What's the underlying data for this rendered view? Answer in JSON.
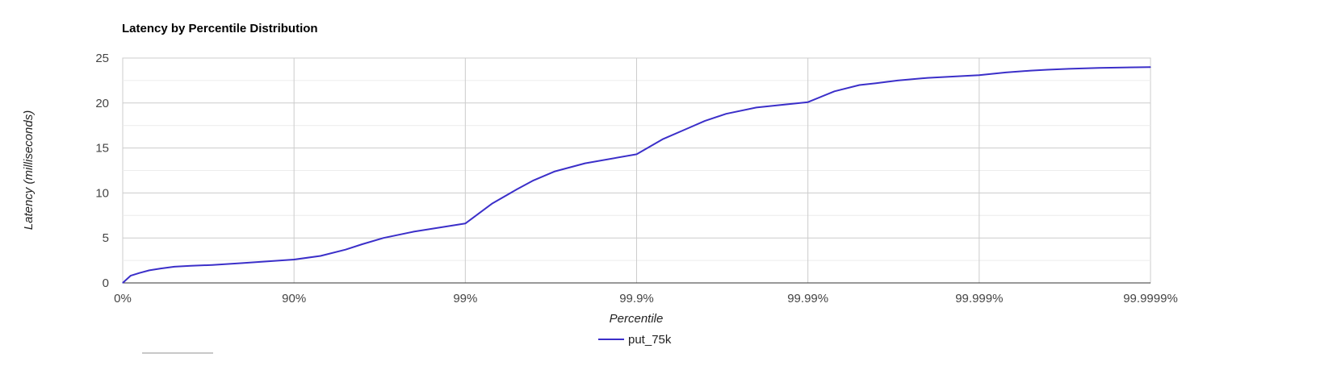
{
  "chart_data": {
    "type": "line",
    "title": "Latency by Percentile Distribution",
    "xlabel": "Percentile",
    "ylabel": "Latency (milliseconds)",
    "x_scale": "log-inverse-percentile",
    "x_ticks": [
      "0%",
      "90%",
      "99%",
      "99.9%",
      "99.99%",
      "99.999%",
      "99.9999%"
    ],
    "y_ticks": [
      "0",
      "5",
      "10",
      "15",
      "20",
      "25"
    ],
    "ylim": [
      0,
      25
    ],
    "grid": true,
    "legend_position": "bottom",
    "series": [
      {
        "name": "put_75k",
        "color": "#3b2fc9",
        "x": [
          "0%",
          "10%",
          "20%",
          "30%",
          "40%",
          "50%",
          "60%",
          "70%",
          "80%",
          "90%",
          "93%",
          "95%",
          "96%",
          "97%",
          "98%",
          "99%",
          "99.3%",
          "99.5%",
          "99.6%",
          "99.7%",
          "99.8%",
          "99.9%",
          "99.93%",
          "99.95%",
          "99.96%",
          "99.97%",
          "99.98%",
          "99.99%",
          "99.993%",
          "99.995%",
          "99.996%",
          "99.997%",
          "99.998%",
          "99.999%",
          "99.9993%",
          "99.9995%",
          "99.9996%",
          "99.9997%",
          "99.9998%",
          "99.9999%"
        ],
        "values": [
          0,
          0.8,
          1.1,
          1.4,
          1.6,
          1.8,
          1.9,
          2.0,
          2.2,
          2.6,
          3.0,
          3.7,
          4.3,
          5.0,
          5.7,
          6.6,
          8.8,
          10.4,
          11.4,
          12.4,
          13.3,
          14.3,
          16.0,
          17.2,
          18.0,
          18.8,
          19.5,
          20.1,
          21.3,
          22.0,
          22.2,
          22.5,
          22.8,
          23.1,
          23.4,
          23.6,
          23.7,
          23.8,
          23.9,
          24.0
        ]
      }
    ]
  }
}
